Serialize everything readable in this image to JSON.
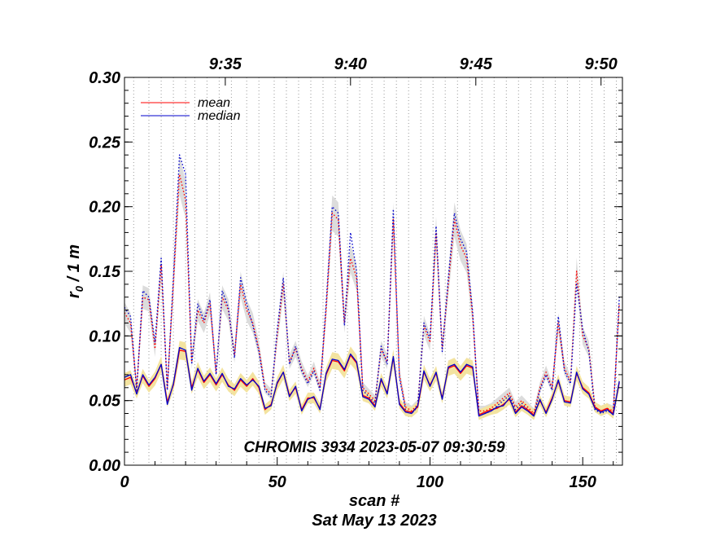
{
  "chart_data": {
    "type": "line",
    "title": "",
    "xlabel": "scan #",
    "date_label": "Sat May 13 2023",
    "ylabel_main": "r",
    "ylabel_sub": "0",
    "ylabel_rest": " / 1 m",
    "annotation": "CHROMIS 3934 2023-05-07 09:30:59",
    "xlim": [
      0,
      163
    ],
    "ylim": [
      0.0,
      0.3
    ],
    "x_ticks": [
      0,
      50,
      100,
      150
    ],
    "x_tick_labels": [
      "0",
      "50",
      "100",
      "150"
    ],
    "y_ticks": [
      0.0,
      0.05,
      0.1,
      0.15,
      0.2,
      0.25,
      0.3
    ],
    "y_tick_labels": [
      "0.00",
      "0.05",
      "0.10",
      "0.15",
      "0.20",
      "0.25",
      "0.30"
    ],
    "top_ticks": [
      {
        "x": 33,
        "label": "9:35"
      },
      {
        "x": 74,
        "label": "9:40"
      },
      {
        "x": 115,
        "label": "9:45"
      },
      {
        "x": 156,
        "label": "9:50"
      }
    ],
    "scan_boundaries": [
      3,
      8,
      12,
      16,
      20,
      23,
      27,
      31,
      35,
      40,
      44,
      49,
      53,
      57,
      61,
      65,
      69,
      73,
      77,
      81,
      85,
      89,
      93,
      97,
      101,
      105,
      109,
      113,
      117,
      121,
      125,
      129,
      133,
      137,
      141,
      145,
      149,
      153,
      157,
      161
    ],
    "grid": false,
    "legend_position": "top-left",
    "colors": {
      "mean": "#ff0000",
      "median": "#0000cc",
      "band_low": "#f3e3a0",
      "band_high": "#dcdcdc"
    },
    "series": [
      {
        "name": "mean",
        "kind": "low-r0",
        "x": [
          0,
          2,
          4,
          6,
          8,
          10,
          12,
          14,
          16,
          18,
          20,
          22,
          24,
          26,
          28,
          30,
          32,
          34,
          36,
          38,
          40,
          42,
          44,
          46,
          48,
          50,
          52,
          54,
          56,
          58,
          60,
          62,
          64,
          66,
          68,
          70,
          72,
          74,
          76,
          78,
          80,
          82,
          84,
          86,
          88,
          90,
          92,
          94,
          96,
          98,
          100,
          102,
          104,
          106,
          108,
          110,
          112,
          114,
          116,
          118,
          120,
          122,
          124,
          126,
          128,
          130,
          132,
          134,
          136,
          138,
          140,
          142,
          144,
          146,
          148,
          150,
          152,
          154,
          156,
          158,
          160,
          162
        ],
        "values": [
          0.066,
          0.068,
          0.056,
          0.069,
          0.061,
          0.067,
          0.078,
          0.049,
          0.062,
          0.089,
          0.088,
          0.06,
          0.074,
          0.064,
          0.07,
          0.062,
          0.07,
          0.062,
          0.058,
          0.066,
          0.061,
          0.067,
          0.06,
          0.043,
          0.047,
          0.063,
          0.072,
          0.054,
          0.06,
          0.043,
          0.052,
          0.052,
          0.044,
          0.07,
          0.081,
          0.08,
          0.073,
          0.085,
          0.079,
          0.054,
          0.052,
          0.046,
          0.066,
          0.056,
          0.083,
          0.048,
          0.042,
          0.041,
          0.045,
          0.072,
          0.062,
          0.071,
          0.052,
          0.075,
          0.077,
          0.071,
          0.077,
          0.075,
          0.039,
          0.041,
          0.043,
          0.044,
          0.047,
          0.051,
          0.041,
          0.046,
          0.043,
          0.039,
          0.05,
          0.041,
          0.052,
          0.065,
          0.05,
          0.049,
          0.071,
          0.06,
          0.056,
          0.045,
          0.042,
          0.044,
          0.04,
          0.064
        ]
      },
      {
        "name": "median",
        "kind": "low-r0",
        "x": [
          0,
          2,
          4,
          6,
          8,
          10,
          12,
          14,
          16,
          18,
          20,
          22,
          24,
          26,
          28,
          30,
          32,
          34,
          36,
          38,
          40,
          42,
          44,
          46,
          48,
          50,
          52,
          54,
          56,
          58,
          60,
          62,
          64,
          66,
          68,
          70,
          72,
          74,
          76,
          78,
          80,
          82,
          84,
          86,
          88,
          90,
          92,
          94,
          96,
          98,
          100,
          102,
          104,
          106,
          108,
          110,
          112,
          114,
          116,
          118,
          120,
          122,
          124,
          126,
          128,
          130,
          132,
          134,
          136,
          138,
          140,
          142,
          144,
          146,
          148,
          150,
          152,
          154,
          156,
          158,
          160,
          162
        ],
        "values": [
          0.068,
          0.07,
          0.055,
          0.07,
          0.062,
          0.068,
          0.078,
          0.047,
          0.063,
          0.091,
          0.089,
          0.058,
          0.075,
          0.065,
          0.071,
          0.063,
          0.071,
          0.061,
          0.059,
          0.067,
          0.062,
          0.066,
          0.061,
          0.044,
          0.046,
          0.064,
          0.072,
          0.053,
          0.061,
          0.042,
          0.051,
          0.053,
          0.043,
          0.071,
          0.082,
          0.081,
          0.074,
          0.086,
          0.08,
          0.053,
          0.051,
          0.045,
          0.067,
          0.055,
          0.084,
          0.047,
          0.041,
          0.04,
          0.046,
          0.073,
          0.061,
          0.072,
          0.051,
          0.076,
          0.078,
          0.072,
          0.078,
          0.076,
          0.038,
          0.04,
          0.042,
          0.045,
          0.046,
          0.052,
          0.04,
          0.045,
          0.042,
          0.038,
          0.051,
          0.04,
          0.051,
          0.066,
          0.049,
          0.048,
          0.072,
          0.059,
          0.055,
          0.044,
          0.041,
          0.043,
          0.039,
          0.065
        ]
      },
      {
        "name": "",
        "kind": "high-r0-mean",
        "x": [
          0,
          2,
          4,
          6,
          8,
          10,
          12,
          14,
          16,
          18,
          20,
          22,
          24,
          26,
          28,
          30,
          32,
          34,
          36,
          38,
          40,
          42,
          44,
          46,
          48,
          50,
          52,
          54,
          56,
          58,
          60,
          62,
          64,
          66,
          68,
          70,
          72,
          74,
          76,
          78,
          80,
          82,
          84,
          86,
          88,
          90,
          92,
          94,
          96,
          98,
          100,
          102,
          104,
          106,
          108,
          110,
          112,
          114,
          116,
          118,
          120,
          122,
          124,
          126,
          128,
          130,
          132,
          134,
          136,
          138,
          140,
          142,
          144,
          146,
          148,
          150,
          152,
          154,
          156,
          158,
          160,
          162
        ],
        "values": [
          0.118,
          0.11,
          0.06,
          0.13,
          0.128,
          0.09,
          0.155,
          0.06,
          0.14,
          0.225,
          0.205,
          0.08,
          0.12,
          0.11,
          0.125,
          0.072,
          0.13,
          0.12,
          0.085,
          0.14,
          0.12,
          0.11,
          0.09,
          0.06,
          0.055,
          0.1,
          0.14,
          0.08,
          0.09,
          0.075,
          0.065,
          0.075,
          0.06,
          0.12,
          0.195,
          0.19,
          0.11,
          0.16,
          0.145,
          0.06,
          0.055,
          0.05,
          0.09,
          0.08,
          0.19,
          0.07,
          0.045,
          0.042,
          0.047,
          0.108,
          0.095,
          0.18,
          0.09,
          0.14,
          0.19,
          0.17,
          0.16,
          0.115,
          0.042,
          0.042,
          0.044,
          0.048,
          0.052,
          0.056,
          0.045,
          0.05,
          0.045,
          0.04,
          0.06,
          0.072,
          0.06,
          0.11,
          0.075,
          0.065,
          0.15,
          0.1,
          0.09,
          0.045,
          0.042,
          0.044,
          0.042,
          0.125
        ]
      },
      {
        "name": "",
        "kind": "high-r0-median",
        "x": [
          0,
          2,
          4,
          6,
          8,
          10,
          12,
          14,
          16,
          18,
          20,
          22,
          24,
          26,
          28,
          30,
          32,
          34,
          36,
          38,
          40,
          42,
          44,
          46,
          48,
          50,
          52,
          54,
          56,
          58,
          60,
          62,
          64,
          66,
          68,
          70,
          72,
          74,
          76,
          78,
          80,
          82,
          84,
          86,
          88,
          90,
          92,
          94,
          96,
          98,
          100,
          102,
          104,
          106,
          108,
          110,
          112,
          114,
          116,
          118,
          120,
          122,
          124,
          126,
          128,
          130,
          132,
          134,
          136,
          138,
          140,
          142,
          144,
          146,
          148,
          150,
          152,
          154,
          156,
          158,
          160,
          162
        ],
        "values": [
          0.122,
          0.115,
          0.058,
          0.135,
          0.13,
          0.095,
          0.16,
          0.058,
          0.145,
          0.24,
          0.225,
          0.078,
          0.125,
          0.112,
          0.128,
          0.07,
          0.135,
          0.122,
          0.083,
          0.145,
          0.125,
          0.108,
          0.088,
          0.058,
          0.053,
          0.105,
          0.145,
          0.078,
          0.092,
          0.073,
          0.063,
          0.073,
          0.058,
          0.125,
          0.2,
          0.195,
          0.108,
          0.18,
          0.15,
          0.058,
          0.053,
          0.048,
          0.092,
          0.078,
          0.198,
          0.068,
          0.043,
          0.04,
          0.045,
          0.11,
          0.098,
          0.185,
          0.088,
          0.145,
          0.195,
          0.175,
          0.165,
          0.118,
          0.04,
          0.04,
          0.042,
          0.046,
          0.05,
          0.054,
          0.043,
          0.048,
          0.043,
          0.038,
          0.058,
          0.07,
          0.058,
          0.115,
          0.073,
          0.063,
          0.14,
          0.105,
          0.088,
          0.043,
          0.04,
          0.042,
          0.04,
          0.13
        ]
      }
    ]
  }
}
